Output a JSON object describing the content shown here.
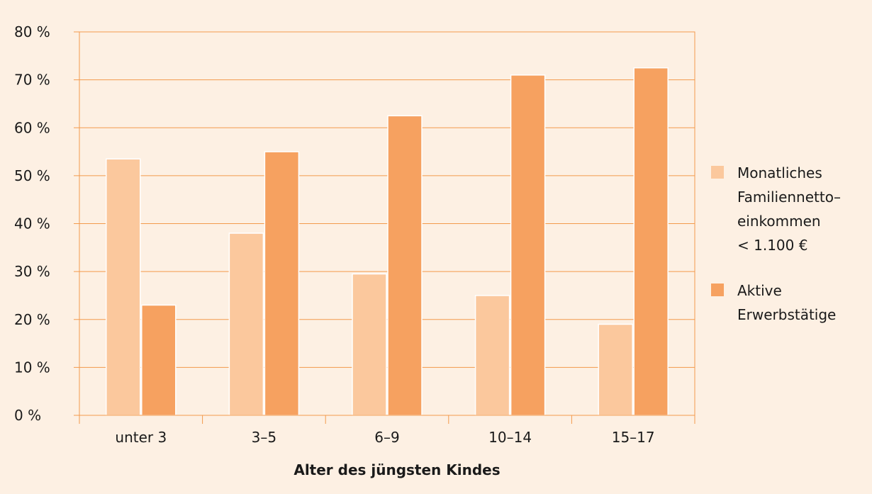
{
  "chart_data": {
    "type": "bar",
    "categories": [
      "unter 3",
      "3–5",
      "6–9",
      "10–14",
      "15–17"
    ],
    "series": [
      {
        "name_lines": [
          "Monatliches",
          "Familiennetto–",
          "einkommen",
          "< 1.100 €"
        ],
        "values": [
          53.5,
          38,
          29.5,
          25,
          19
        ],
        "color": "#fbc89d"
      },
      {
        "name_lines": [
          "Aktive",
          "Erwerbstätige"
        ],
        "values": [
          23,
          55,
          62.5,
          71,
          72.5
        ],
        "color": "#f6a160"
      }
    ],
    "xlabel": "Alter des jüngsten Kindes",
    "ylim": [
      0,
      80
    ],
    "yticks": [
      0,
      10,
      20,
      30,
      40,
      50,
      60,
      70,
      80
    ],
    "ytick_labels": [
      "0 %",
      "10 %",
      "20 %",
      "30 %",
      "40 %",
      "50 %",
      "60 %",
      "70 %",
      "80 %"
    ],
    "grid": true,
    "legend_position": "right",
    "colors": {
      "axis": "#f39a4c",
      "grid": "#f39a4c",
      "background": "#fdf0e3",
      "bar_border": "#ffffff"
    }
  }
}
